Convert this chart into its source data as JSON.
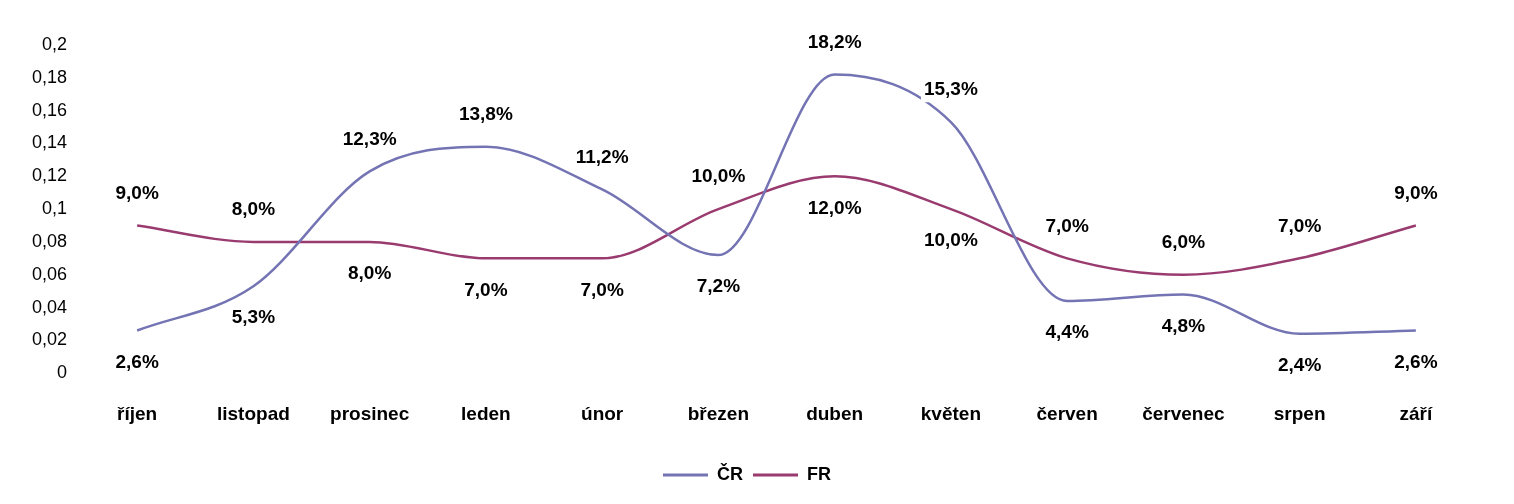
{
  "chart_data": {
    "type": "line",
    "categories": [
      "říjen",
      "listopad",
      "prosinec",
      "leden",
      "únor",
      "březen",
      "duben",
      "květen",
      "červen",
      "červenec",
      "srpen",
      "září"
    ],
    "series": [
      {
        "name": "ČR",
        "color": "#7474b4",
        "values": [
          0.026,
          0.053,
          0.123,
          0.138,
          0.112,
          0.072,
          0.182,
          0.153,
          0.044,
          0.048,
          0.024,
          0.026
        ],
        "value_labels": [
          "2,6%",
          "5,3%",
          "12,3%",
          "13,8%",
          "11,2%",
          "7,2%",
          "18,2%",
          "15,3%",
          "4,4%",
          "4,8%",
          "2,4%",
          "2,6%"
        ]
      },
      {
        "name": "FR",
        "color": "#9a3b70",
        "values": [
          0.09,
          0.08,
          0.08,
          0.07,
          0.07,
          0.1,
          0.12,
          0.1,
          0.07,
          0.06,
          0.07,
          0.09
        ],
        "value_labels": [
          "9,0%",
          "8,0%",
          "8,0%",
          "7,0%",
          "7,0%",
          "10,0%",
          "12,0%",
          "10,0%",
          "7,0%",
          "6,0%",
          "7,0%",
          "9,0%"
        ]
      }
    ],
    "ylim": [
      0,
      0.2
    ],
    "yticks": [
      {
        "value": 0,
        "label": "0"
      },
      {
        "value": 0.02,
        "label": "0,02"
      },
      {
        "value": 0.04,
        "label": "0,04"
      },
      {
        "value": 0.06,
        "label": "0,06"
      },
      {
        "value": 0.08,
        "label": "0,08"
      },
      {
        "value": 0.1,
        "label": "0,1"
      },
      {
        "value": 0.12,
        "label": "0,12"
      },
      {
        "value": 0.14,
        "label": "0,14"
      },
      {
        "value": 0.16,
        "label": "0,16"
      },
      {
        "value": 0.18,
        "label": "0,18"
      },
      {
        "value": 0.2,
        "label": "0,2"
      }
    ],
    "grid": false,
    "legend": "bottom",
    "marker": "none",
    "line_style": "solid"
  }
}
